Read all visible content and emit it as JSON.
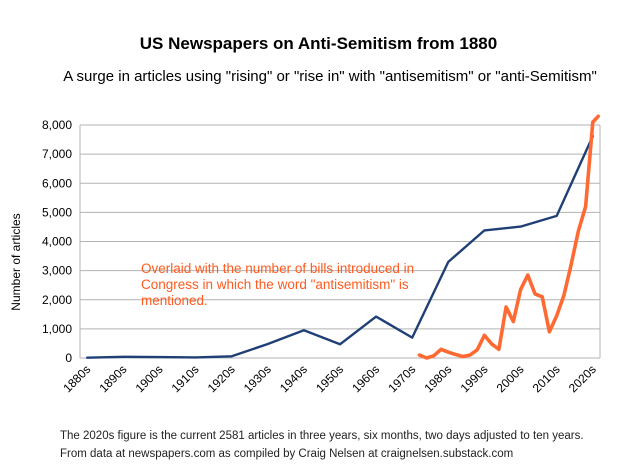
{
  "chart_data": {
    "type": "line",
    "title": "US Newspapers on Anti-Semitism from 1880",
    "subtitle": "A surge in articles using \"rising\" or \"rise in\" with \"antisemitism\" or \"anti-Semitism\"",
    "xlabel": "",
    "ylabel": "Number of articles",
    "categories": [
      "1880s",
      "1890s",
      "1900s",
      "1910s",
      "1920s",
      "1930s",
      "1940s",
      "1950s",
      "1960s",
      "1970s",
      "1980s",
      "1990s",
      "2000s",
      "2010s",
      "2020s"
    ],
    "ylim": [
      0,
      8000
    ],
    "yticks": [
      0,
      1000,
      2000,
      3000,
      4000,
      5000,
      6000,
      7000,
      8000
    ],
    "ytick_labels": [
      "0",
      "1,000",
      "2,000",
      "3,000",
      "4,000",
      "5,000",
      "6,000",
      "7,000",
      "8,000"
    ],
    "grid": true,
    "series": [
      {
        "color": "#1f3f76",
        "x": [
          0,
          1,
          2,
          3,
          4,
          5,
          6,
          7,
          8,
          9,
          10,
          11,
          12,
          13,
          14
        ],
        "values": [
          10,
          40,
          30,
          20,
          60,
          480,
          950,
          470,
          1420,
          700,
          3300,
          4380,
          4510,
          4880,
          7620
        ]
      },
      {
        "color": "#ff6a33",
        "x": [
          9.2,
          9.4,
          9.6,
          9.8,
          10.0,
          10.2,
          10.4,
          10.6,
          10.8,
          11.0,
          11.2,
          11.4,
          11.6,
          11.8,
          12.0,
          12.2,
          12.4,
          12.6,
          12.8,
          13.0,
          13.2,
          13.4,
          13.6,
          13.8,
          14.0,
          14.15
        ],
        "values": [
          100,
          0,
          80,
          300,
          200,
          120,
          50,
          100,
          280,
          780,
          480,
          300,
          1750,
          1250,
          2350,
          2850,
          2200,
          2100,
          900,
          1450,
          2150,
          3200,
          4350,
          5200,
          8100,
          8300
        ]
      }
    ],
    "annotation": "Overlaid with the number of bills introduced in Congress in which the word \"antisemitism\" is mentioned."
  },
  "footnotes": {
    "line1": "The 2020s figure is the current 2581 articles in three years, six months, two days adjusted to ten years.",
    "line2": "From data at newspapers.com as compiled by Craig Nelsen at craignelsen.substack.com"
  }
}
